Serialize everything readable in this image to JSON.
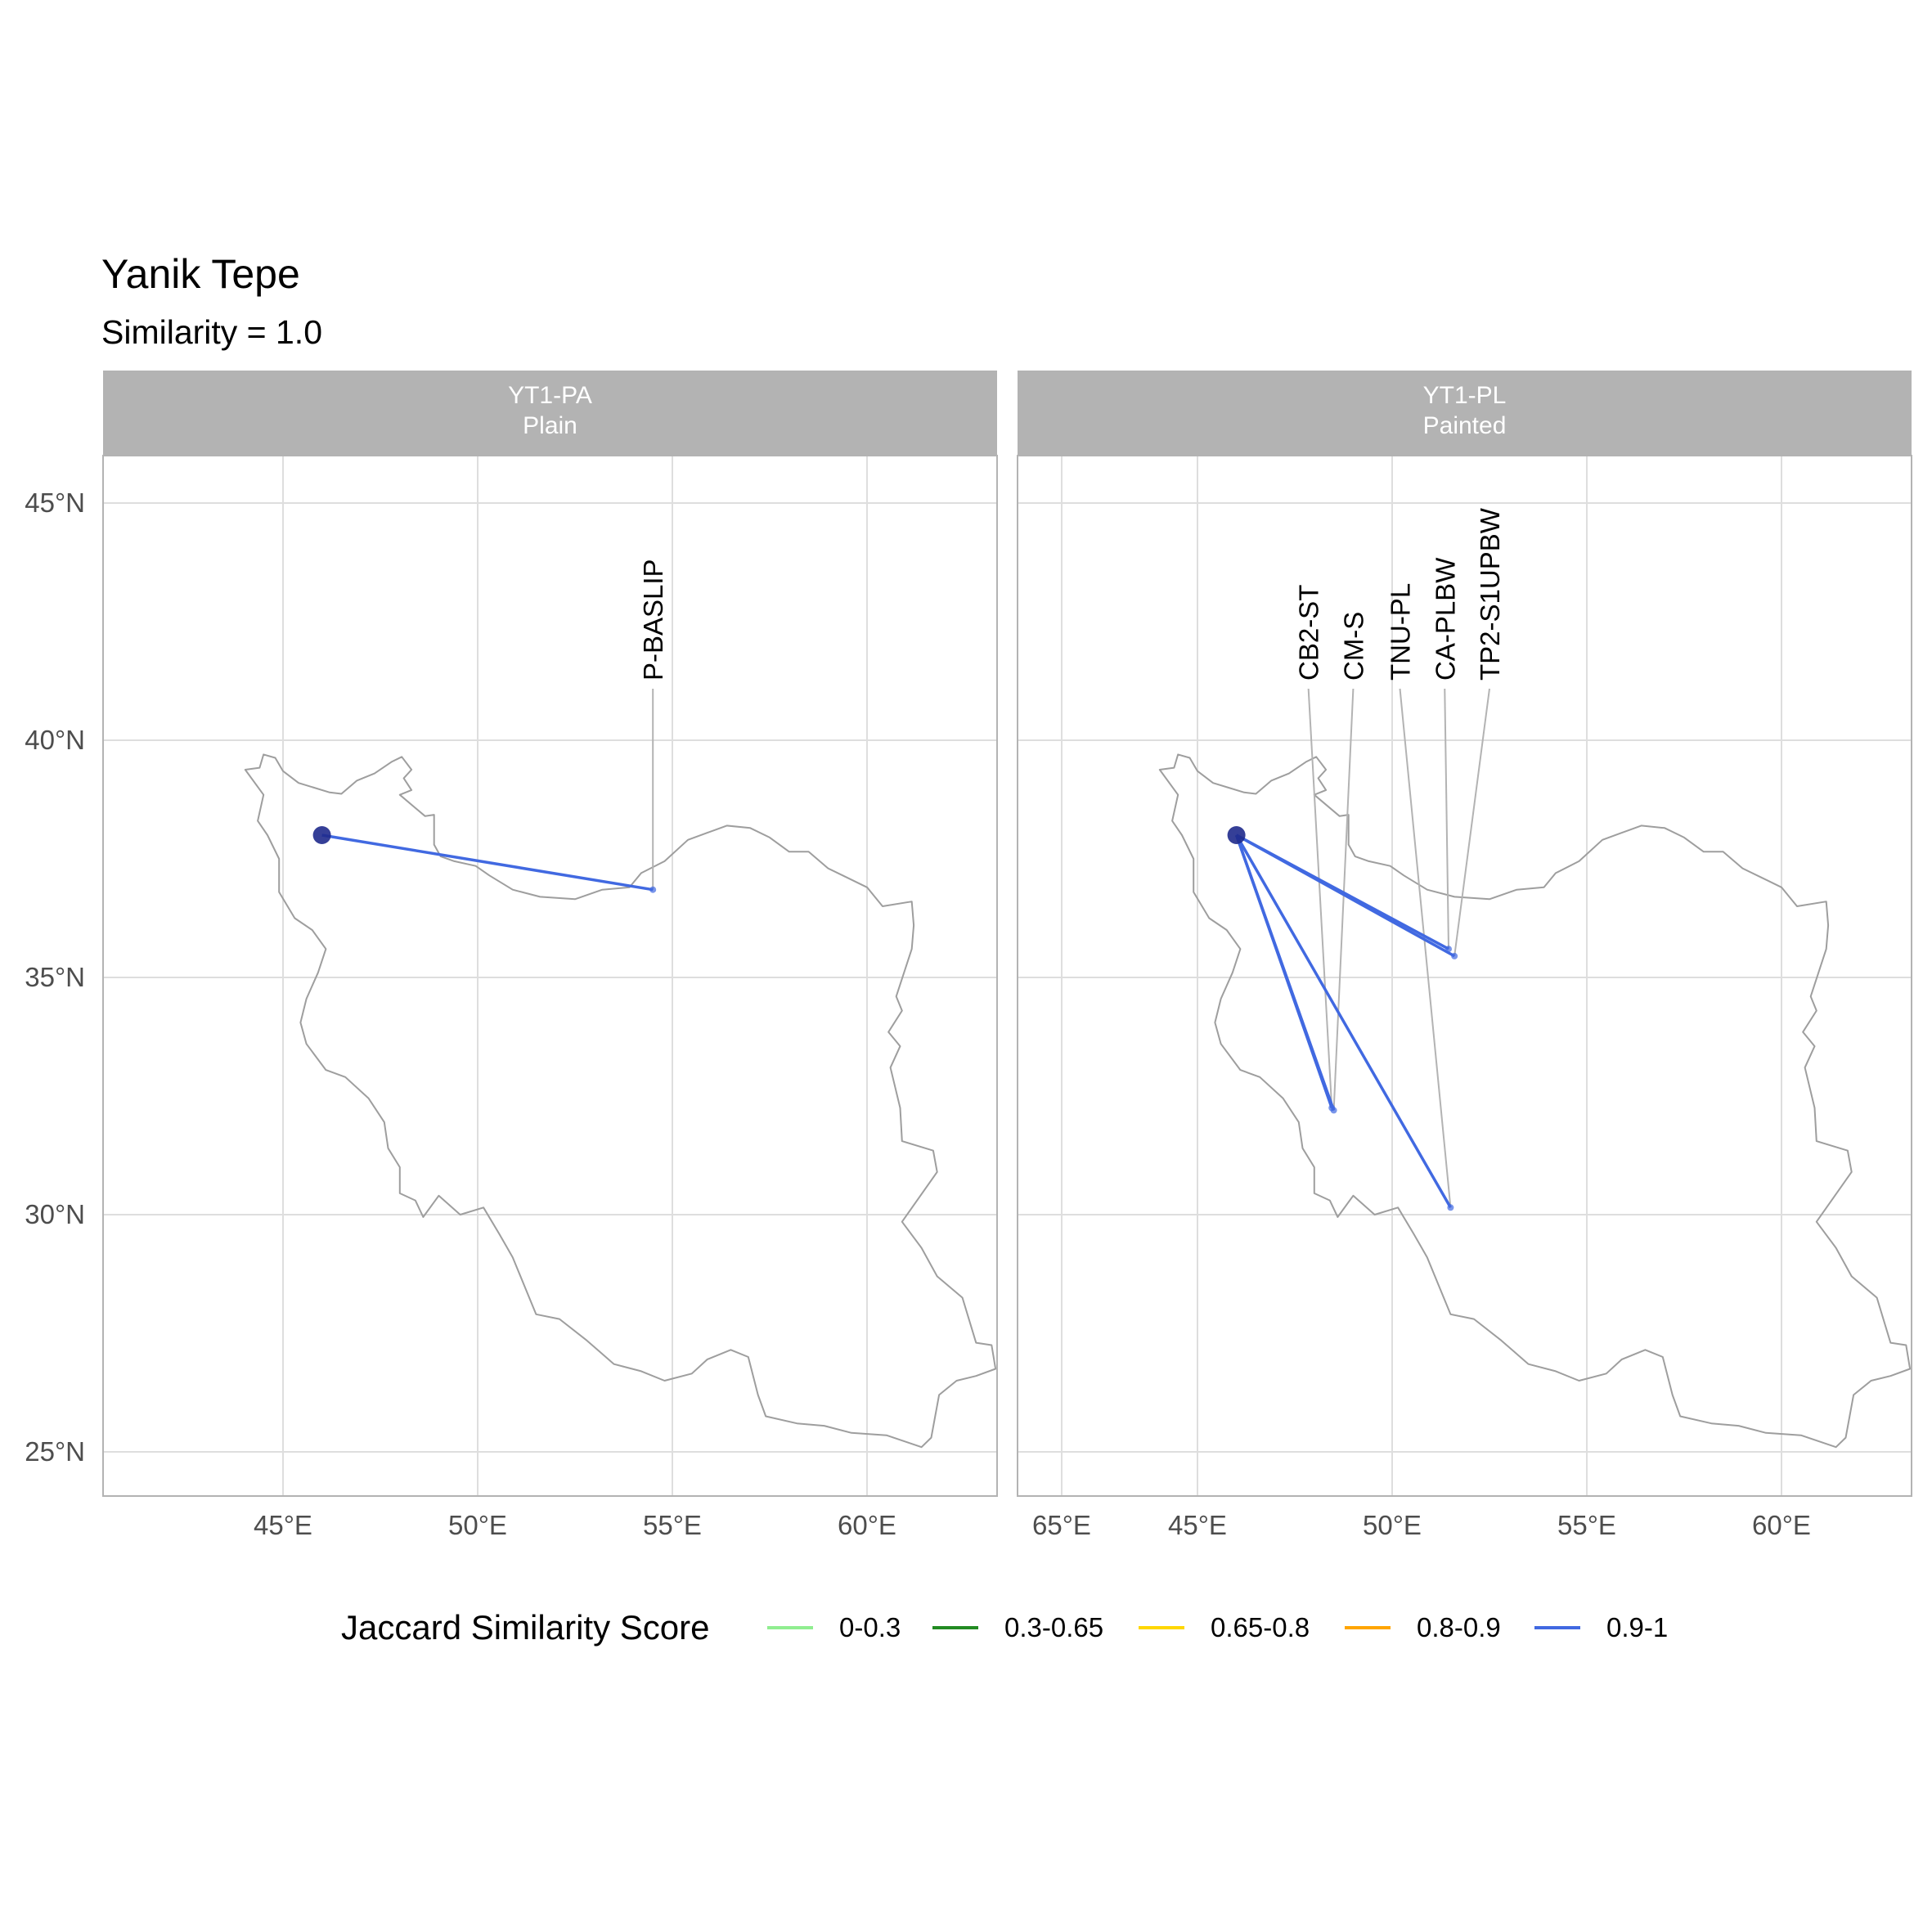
{
  "title": "Yanik Tepe",
  "subtitle": "Similarity = 1.0",
  "colors": {
    "strip_bg": "#b3b3b3",
    "grid": "#dedede",
    "border": "#b3b3b3",
    "country": "#9e9e9e",
    "origin": "#1f2a8c",
    "leader": "#b3b3b3"
  },
  "axes": {
    "x_ticks": [
      45,
      50,
      55,
      60,
      65
    ],
    "x_tick_labels": [
      "45°E",
      "50°E",
      "55°E",
      "60°E",
      "65°E"
    ],
    "y_ticks": [
      25,
      30,
      35,
      40,
      45
    ],
    "y_tick_labels": [
      "25°N",
      "30°N",
      "35°N",
      "40°N",
      "45°N"
    ],
    "xlim": [
      43,
      66
    ],
    "ylim": [
      24.1,
      46
    ]
  },
  "origin": {
    "lon": 46.0,
    "lat": 38.0
  },
  "panels": [
    {
      "strip_line1": "YT1-PA",
      "strip_line2": "Plain",
      "connections": [
        {
          "site": "P-BASLIP",
          "lon": 54.5,
          "lat": 36.85,
          "label_lon": 54.5,
          "score_class": "0.9-1"
        }
      ]
    },
    {
      "strip_line1": "YT1-PL",
      "strip_line2": "Painted",
      "connections": [
        {
          "site": "CB2-ST",
          "lon": 48.45,
          "lat": 32.25,
          "label_lon": 47.85,
          "score_class": "0.9-1"
        },
        {
          "site": "CM-S",
          "lon": 48.5,
          "lat": 32.2,
          "label_lon": 49.0,
          "score_class": "0.9-1"
        },
        {
          "site": "TNU-PL",
          "lon": 51.5,
          "lat": 30.15,
          "label_lon": 50.2,
          "score_class": "0.9-1"
        },
        {
          "site": "CA-PLBW",
          "lon": 51.45,
          "lat": 35.6,
          "label_lon": 51.35,
          "score_class": "0.9-1"
        },
        {
          "site": "TP2-S1UPBW",
          "lon": 51.6,
          "lat": 35.45,
          "label_lon": 52.5,
          "score_class": "0.9-1"
        }
      ]
    }
  ],
  "legend": {
    "title": "Jaccard Similarity Score",
    "items": [
      {
        "label": "0-0.3",
        "color": "#90ee90"
      },
      {
        "label": "0.3-0.65",
        "color": "#228b22"
      },
      {
        "label": "0.65-0.8",
        "color": "#ffd700"
      },
      {
        "label": "0.8-0.9",
        "color": "#ffa500"
      },
      {
        "label": "0.9-1",
        "color": "#4169e1"
      }
    ]
  },
  "iran_outline": [
    [
      44.03,
      39.38
    ],
    [
      44.4,
      39.42
    ],
    [
      44.5,
      39.7
    ],
    [
      44.8,
      39.63
    ],
    [
      45.0,
      39.35
    ],
    [
      45.4,
      39.1
    ],
    [
      45.8,
      39.0
    ],
    [
      46.2,
      38.9
    ],
    [
      46.5,
      38.87
    ],
    [
      46.9,
      39.15
    ],
    [
      47.35,
      39.3
    ],
    [
      47.8,
      39.55
    ],
    [
      48.05,
      39.65
    ],
    [
      48.3,
      39.38
    ],
    [
      48.1,
      39.2
    ],
    [
      48.3,
      38.95
    ],
    [
      48.0,
      38.85
    ],
    [
      48.65,
      38.4
    ],
    [
      48.88,
      38.43
    ],
    [
      48.88,
      37.8
    ],
    [
      49.05,
      37.55
    ],
    [
      49.4,
      37.45
    ],
    [
      49.95,
      37.35
    ],
    [
      50.3,
      37.15
    ],
    [
      50.9,
      36.85
    ],
    [
      51.6,
      36.7
    ],
    [
      52.5,
      36.65
    ],
    [
      53.2,
      36.85
    ],
    [
      53.9,
      36.9
    ],
    [
      54.2,
      37.2
    ],
    [
      54.8,
      37.45
    ],
    [
      55.4,
      37.9
    ],
    [
      55.9,
      38.05
    ],
    [
      56.4,
      38.2
    ],
    [
      57.0,
      38.15
    ],
    [
      57.5,
      37.95
    ],
    [
      58.0,
      37.65
    ],
    [
      58.5,
      37.65
    ],
    [
      59.0,
      37.3
    ],
    [
      59.5,
      37.1
    ],
    [
      60.0,
      36.9
    ],
    [
      60.4,
      36.5
    ],
    [
      61.15,
      36.6
    ],
    [
      61.2,
      36.1
    ],
    [
      61.15,
      35.6
    ],
    [
      60.75,
      34.6
    ],
    [
      60.9,
      34.3
    ],
    [
      60.55,
      33.85
    ],
    [
      60.85,
      33.55
    ],
    [
      60.6,
      33.1
    ],
    [
      60.85,
      32.25
    ],
    [
      60.9,
      31.55
    ],
    [
      61.7,
      31.35
    ],
    [
      61.8,
      30.9
    ],
    [
      60.9,
      29.85
    ],
    [
      61.4,
      29.3
    ],
    [
      61.8,
      28.7
    ],
    [
      62.45,
      28.25
    ],
    [
      62.8,
      27.3
    ],
    [
      63.2,
      27.25
    ],
    [
      63.3,
      26.75
    ],
    [
      62.8,
      26.6
    ],
    [
      62.3,
      26.5
    ],
    [
      61.85,
      26.2
    ],
    [
      61.65,
      25.3
    ],
    [
      61.4,
      25.1
    ],
    [
      60.5,
      25.35
    ],
    [
      59.6,
      25.4
    ],
    [
      58.9,
      25.55
    ],
    [
      58.2,
      25.6
    ],
    [
      57.4,
      25.75
    ],
    [
      57.2,
      26.2
    ],
    [
      56.95,
      27.0
    ],
    [
      56.5,
      27.15
    ],
    [
      55.9,
      26.95
    ],
    [
      55.5,
      26.65
    ],
    [
      54.8,
      26.5
    ],
    [
      54.2,
      26.7
    ],
    [
      53.5,
      26.85
    ],
    [
      52.8,
      27.35
    ],
    [
      52.1,
      27.8
    ],
    [
      51.5,
      27.9
    ],
    [
      51.2,
      28.5
    ],
    [
      50.9,
      29.1
    ],
    [
      50.55,
      29.6
    ],
    [
      50.15,
      30.15
    ],
    [
      49.55,
      30.0
    ],
    [
      49.0,
      30.4
    ],
    [
      48.6,
      29.95
    ],
    [
      48.4,
      30.3
    ],
    [
      48.0,
      30.45
    ],
    [
      48.0,
      31.0
    ],
    [
      47.7,
      31.4
    ],
    [
      47.6,
      31.95
    ],
    [
      47.2,
      32.45
    ],
    [
      46.6,
      32.9
    ],
    [
      46.1,
      33.05
    ],
    [
      45.6,
      33.6
    ],
    [
      45.45,
      34.05
    ],
    [
      45.6,
      34.55
    ],
    [
      45.9,
      35.1
    ],
    [
      46.1,
      35.6
    ],
    [
      45.75,
      36.0
    ],
    [
      45.3,
      36.25
    ],
    [
      44.9,
      36.8
    ],
    [
      44.9,
      37.5
    ],
    [
      44.6,
      38.0
    ],
    [
      44.35,
      38.3
    ],
    [
      44.5,
      38.85
    ],
    [
      44.03,
      39.38
    ]
  ]
}
